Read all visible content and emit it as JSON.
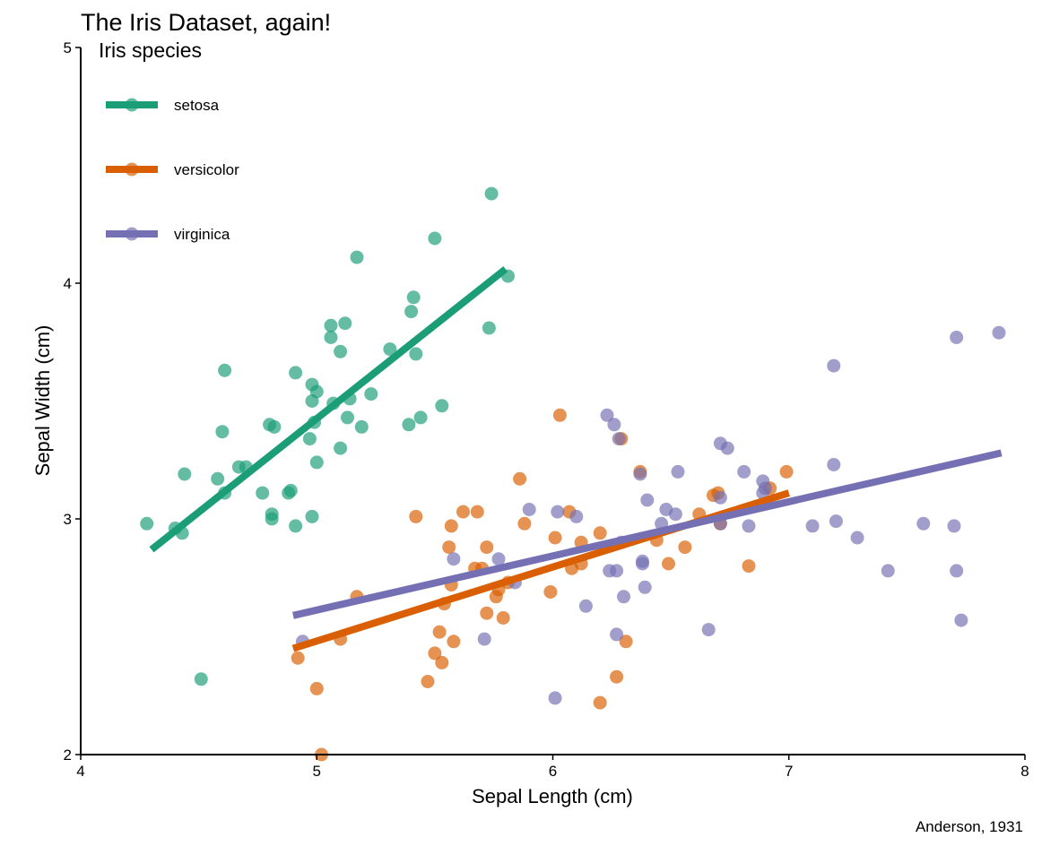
{
  "chart_data": {
    "type": "scatter",
    "title": "The Iris Dataset, again!",
    "xlabel": "Sepal Length (cm)",
    "ylabel": "Sepal Width (cm)",
    "caption": "Anderson, 1931",
    "xlim": [
      4,
      8
    ],
    "ylim": [
      2,
      5
    ],
    "xticks": [
      "4",
      "5",
      "6",
      "7",
      "8"
    ],
    "yticks": [
      "2",
      "3",
      "4",
      "5"
    ],
    "grid": false,
    "legend": {
      "title": "Iris species",
      "placement": "top-left"
    },
    "series": [
      {
        "name": "setosa",
        "color": "#1b9e77",
        "fit": {
          "x": [
            4.3,
            5.8
          ],
          "y": [
            2.87,
            4.06
          ]
        },
        "points": [
          [
            4.28,
            2.98
          ],
          [
            4.4,
            2.96
          ],
          [
            4.43,
            2.94
          ],
          [
            4.44,
            3.19
          ],
          [
            4.51,
            2.32
          ],
          [
            4.58,
            3.17
          ],
          [
            4.6,
            3.37
          ],
          [
            4.61,
            3.11
          ],
          [
            4.61,
            3.63
          ],
          [
            4.67,
            3.22
          ],
          [
            4.7,
            3.22
          ],
          [
            4.77,
            3.11
          ],
          [
            4.8,
            3.4
          ],
          [
            4.81,
            3.02
          ],
          [
            4.81,
            3.0
          ],
          [
            4.82,
            3.39
          ],
          [
            4.88,
            3.11
          ],
          [
            4.89,
            3.12
          ],
          [
            4.91,
            3.62
          ],
          [
            4.91,
            2.97
          ],
          [
            4.97,
            3.34
          ],
          [
            4.98,
            3.57
          ],
          [
            4.98,
            3.5
          ],
          [
            4.98,
            3.01
          ],
          [
            4.99,
            3.41
          ],
          [
            5.0,
            3.24
          ],
          [
            5.0,
            3.54
          ],
          [
            5.06,
            3.77
          ],
          [
            5.06,
            3.82
          ],
          [
            5.07,
            3.49
          ],
          [
            5.1,
            3.71
          ],
          [
            5.1,
            3.3
          ],
          [
            5.12,
            3.83
          ],
          [
            5.13,
            3.43
          ],
          [
            5.14,
            3.51
          ],
          [
            5.17,
            4.11
          ],
          [
            5.19,
            3.39
          ],
          [
            5.23,
            3.53
          ],
          [
            5.31,
            3.72
          ],
          [
            5.39,
            3.4
          ],
          [
            5.4,
            3.88
          ],
          [
            5.41,
            3.94
          ],
          [
            5.42,
            3.7
          ],
          [
            5.44,
            3.43
          ],
          [
            5.5,
            4.19
          ],
          [
            5.53,
            3.48
          ],
          [
            5.73,
            3.81
          ],
          [
            5.74,
            4.38
          ],
          [
            5.81,
            4.03
          ]
        ]
      },
      {
        "name": "versicolor",
        "color": "#d95f02",
        "fit": {
          "x": [
            4.9,
            7.0
          ],
          "y": [
            2.45,
            3.11
          ]
        },
        "points": [
          [
            4.92,
            2.41
          ],
          [
            5.0,
            2.28
          ],
          [
            5.02,
            2.0
          ],
          [
            5.1,
            2.49
          ],
          [
            5.17,
            2.67
          ],
          [
            5.42,
            3.01
          ],
          [
            5.47,
            2.31
          ],
          [
            5.5,
            2.43
          ],
          [
            5.52,
            2.52
          ],
          [
            5.53,
            2.39
          ],
          [
            5.54,
            2.64
          ],
          [
            5.56,
            2.88
          ],
          [
            5.57,
            2.97
          ],
          [
            5.57,
            2.72
          ],
          [
            5.58,
            2.48
          ],
          [
            5.62,
            3.03
          ],
          [
            5.67,
            2.79
          ],
          [
            5.68,
            3.03
          ],
          [
            5.7,
            2.79
          ],
          [
            5.72,
            2.6
          ],
          [
            5.72,
            2.88
          ],
          [
            5.76,
            2.67
          ],
          [
            5.77,
            2.7
          ],
          [
            5.79,
            2.58
          ],
          [
            5.81,
            2.73
          ],
          [
            5.86,
            3.17
          ],
          [
            5.88,
            2.98
          ],
          [
            5.99,
            2.69
          ],
          [
            6.01,
            2.92
          ],
          [
            6.03,
            3.44
          ],
          [
            6.07,
            3.03
          ],
          [
            6.08,
            2.79
          ],
          [
            6.12,
            2.9
          ],
          [
            6.12,
            2.81
          ],
          [
            6.2,
            2.94
          ],
          [
            6.2,
            2.22
          ],
          [
            6.27,
            2.33
          ],
          [
            6.29,
            3.34
          ],
          [
            6.31,
            2.48
          ],
          [
            6.37,
            3.2
          ],
          [
            6.44,
            2.91
          ],
          [
            6.49,
            2.81
          ],
          [
            6.56,
            2.88
          ],
          [
            6.62,
            3.02
          ],
          [
            6.68,
            3.1
          ],
          [
            6.7,
            3.11
          ],
          [
            6.71,
            2.98
          ],
          [
            6.83,
            2.8
          ],
          [
            6.92,
            3.13
          ],
          [
            6.99,
            3.2
          ]
        ]
      },
      {
        "name": "virginica",
        "color": "#7570b3",
        "fit": {
          "x": [
            4.9,
            7.9
          ],
          "y": [
            2.59,
            3.28
          ]
        },
        "points": [
          [
            4.94,
            2.48
          ],
          [
            5.58,
            2.83
          ],
          [
            5.71,
            2.49
          ],
          [
            5.77,
            2.83
          ],
          [
            5.84,
            2.73
          ],
          [
            5.9,
            3.04
          ],
          [
            6.01,
            2.24
          ],
          [
            6.02,
            3.03
          ],
          [
            6.1,
            3.01
          ],
          [
            6.14,
            2.63
          ],
          [
            6.23,
            3.44
          ],
          [
            6.24,
            2.78
          ],
          [
            6.26,
            3.4
          ],
          [
            6.27,
            2.78
          ],
          [
            6.27,
            2.51
          ],
          [
            6.28,
            3.34
          ],
          [
            6.29,
            2.9
          ],
          [
            6.3,
            2.67
          ],
          [
            6.37,
            3.19
          ],
          [
            6.38,
            2.82
          ],
          [
            6.38,
            2.81
          ],
          [
            6.39,
            2.71
          ],
          [
            6.4,
            3.08
          ],
          [
            6.46,
            2.98
          ],
          [
            6.48,
            3.04
          ],
          [
            6.52,
            3.02
          ],
          [
            6.53,
            3.2
          ],
          [
            6.66,
            2.53
          ],
          [
            6.71,
            3.09
          ],
          [
            6.71,
            2.98
          ],
          [
            6.71,
            3.32
          ],
          [
            6.74,
            3.3
          ],
          [
            6.81,
            3.2
          ],
          [
            6.83,
            2.97
          ],
          [
            6.89,
            3.16
          ],
          [
            6.89,
            3.11
          ],
          [
            6.9,
            3.13
          ],
          [
            7.1,
            2.97
          ],
          [
            7.19,
            3.65
          ],
          [
            7.19,
            3.23
          ],
          [
            7.2,
            2.99
          ],
          [
            7.29,
            2.92
          ],
          [
            7.42,
            2.78
          ],
          [
            7.57,
            2.98
          ],
          [
            7.7,
            2.97
          ],
          [
            7.71,
            3.77
          ],
          [
            7.71,
            2.78
          ],
          [
            7.73,
            2.57
          ],
          [
            7.89,
            3.79
          ]
        ]
      }
    ]
  }
}
